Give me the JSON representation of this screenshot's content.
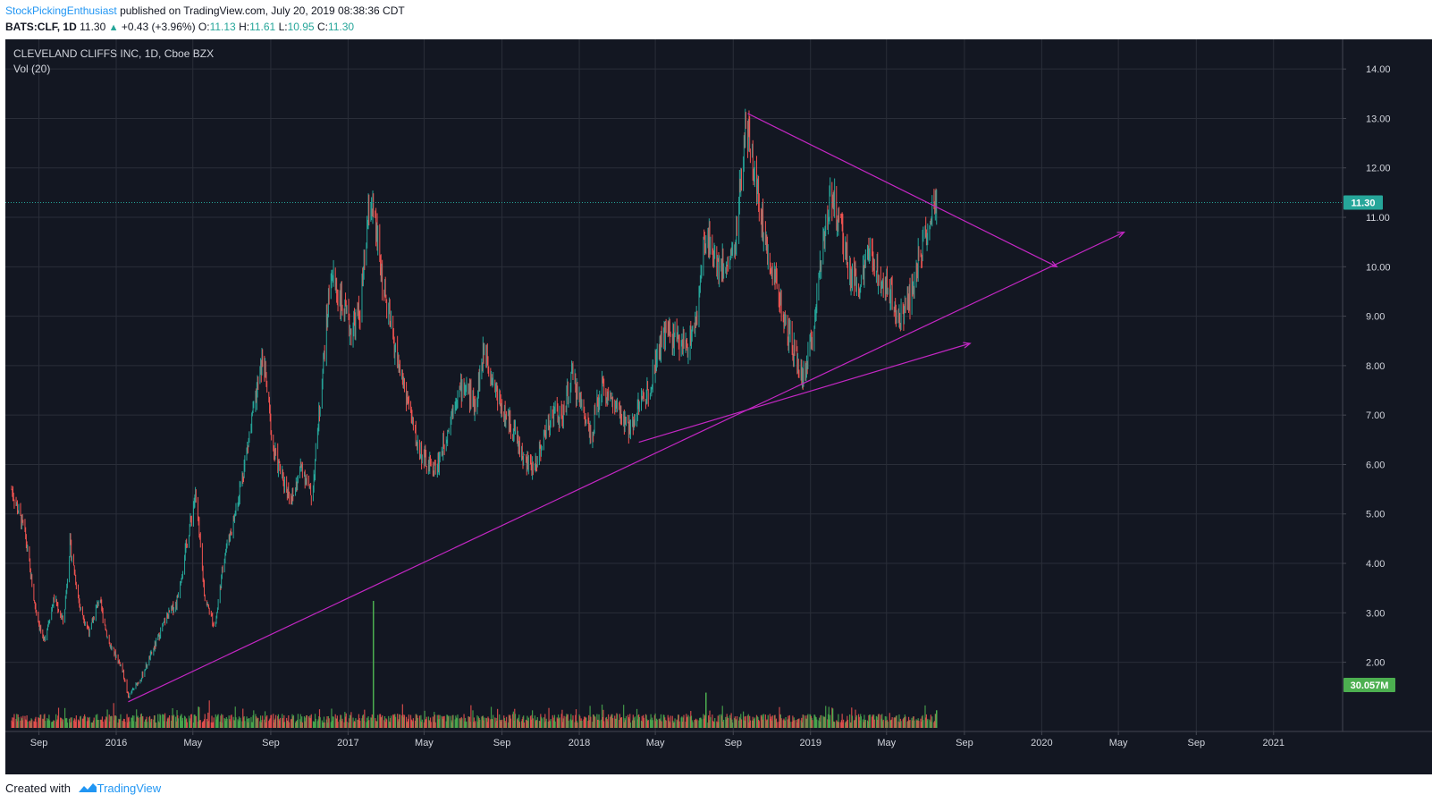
{
  "header": {
    "author": "StockPickingEnthusiast",
    "published_text": "published on TradingView.com, July 20, 2019 08:38:36 CDT",
    "symbol": "BATS:CLF, 1D",
    "last": "11.30",
    "change": "+0.43 (+3.96%)",
    "o_label": "O:",
    "o_value": "11.13",
    "h_label": "H:",
    "h_value": "11.61",
    "l_label": "L:",
    "l_value": "10.95",
    "c_label": "C:",
    "c_value": "11.30"
  },
  "legend": {
    "title": "CLEVELAND CLIFFS INC, 1D, Cboe BZX",
    "volume": "Vol (20)"
  },
  "colors": {
    "background": "#131722",
    "grid": "#2a2e39",
    "up": "#26a69a",
    "down": "#ef5350",
    "vol_up": "#4caf50",
    "vol_down": "#ef5350",
    "trendline": "#c327c3",
    "price_line": "#26a69a",
    "axis_text": "#d1d4dc"
  },
  "chart_data": {
    "type": "candlestick",
    "title": "CLEVELAND CLIFFS INC, 1D, Cboe BZX",
    "price_axis": {
      "ticks": [
        "14.00",
        "13.00",
        "12.00",
        "11.00",
        "10.00",
        "9.00",
        "8.00",
        "7.00",
        "6.00",
        "5.00",
        "4.00",
        "3.00",
        "2.00"
      ],
      "range": [
        0.6,
        14.6
      ]
    },
    "time_axis": {
      "ticks": [
        {
          "date": "2015-09-01",
          "label": "Sep"
        },
        {
          "date": "2016-01-01",
          "label": "2016"
        },
        {
          "date": "2016-05-01",
          "label": "May"
        },
        {
          "date": "2016-09-01",
          "label": "Sep"
        },
        {
          "date": "2017-01-01",
          "label": "2017"
        },
        {
          "date": "2017-05-01",
          "label": "May"
        },
        {
          "date": "2017-09-01",
          "label": "Sep"
        },
        {
          "date": "2018-01-01",
          "label": "2018"
        },
        {
          "date": "2018-05-01",
          "label": "May"
        },
        {
          "date": "2018-09-01",
          "label": "Sep"
        },
        {
          "date": "2019-01-01",
          "label": "2019"
        },
        {
          "date": "2019-05-01",
          "label": "May"
        },
        {
          "date": "2019-09-01",
          "label": "Sep"
        },
        {
          "date": "2020-01-01",
          "label": "2020"
        },
        {
          "date": "2020-05-01",
          "label": "May"
        },
        {
          "date": "2020-09-01",
          "label": "Sep"
        },
        {
          "date": "2021-01-01",
          "label": "2021"
        }
      ],
      "range": [
        "2015-07-10",
        "2021-04-20"
      ]
    },
    "grid": true,
    "last_price": {
      "value": 11.3,
      "label": "11.30"
    },
    "last_volume": {
      "value": "30.057M",
      "label": "30.057M"
    },
    "price_path": [
      [
        "2015-07-20",
        5.5
      ],
      [
        "2015-08-10",
        4.6
      ],
      [
        "2015-08-25",
        3.2
      ],
      [
        "2015-09-08",
        2.4
      ],
      [
        "2015-09-25",
        3.3
      ],
      [
        "2015-10-10",
        2.8
      ],
      [
        "2015-10-20",
        4.4
      ],
      [
        "2015-11-05",
        3.1
      ],
      [
        "2015-11-20",
        2.6
      ],
      [
        "2015-12-05",
        3.3
      ],
      [
        "2015-12-20",
        2.4
      ],
      [
        "2016-01-10",
        1.9
      ],
      [
        "2016-01-20",
        1.3
      ],
      [
        "2016-02-10",
        1.7
      ],
      [
        "2016-03-01",
        2.3
      ],
      [
        "2016-03-20",
        2.9
      ],
      [
        "2016-04-05",
        3.2
      ],
      [
        "2016-04-20",
        4.3
      ],
      [
        "2016-05-05",
        5.4
      ],
      [
        "2016-05-20",
        3.3
      ],
      [
        "2016-06-05",
        2.7
      ],
      [
        "2016-06-20",
        4.2
      ],
      [
        "2016-07-05",
        4.9
      ],
      [
        "2016-07-20",
        5.9
      ],
      [
        "2016-08-05",
        7.1
      ],
      [
        "2016-08-20",
        8.2
      ],
      [
        "2016-09-05",
        6.3
      ],
      [
        "2016-09-20",
        5.7
      ],
      [
        "2016-10-05",
        5.3
      ],
      [
        "2016-10-20",
        6.0
      ],
      [
        "2016-11-05",
        5.3
      ],
      [
        "2016-11-20",
        7.6
      ],
      [
        "2016-12-05",
        9.9
      ],
      [
        "2016-12-20",
        9.3
      ],
      [
        "2017-01-05",
        8.7
      ],
      [
        "2017-01-20",
        9.1
      ],
      [
        "2017-02-05",
        11.4
      ],
      [
        "2017-02-15",
        10.6
      ],
      [
        "2017-03-01",
        9.3
      ],
      [
        "2017-03-20",
        8.1
      ],
      [
        "2017-04-05",
        7.3
      ],
      [
        "2017-04-20",
        6.4
      ],
      [
        "2017-05-05",
        6.0
      ],
      [
        "2017-05-20",
        5.9
      ],
      [
        "2017-06-05",
        6.6
      ],
      [
        "2017-06-20",
        7.4
      ],
      [
        "2017-07-05",
        7.6
      ],
      [
        "2017-07-20",
        7.2
      ],
      [
        "2017-08-05",
        8.4
      ],
      [
        "2017-08-20",
        7.6
      ],
      [
        "2017-09-05",
        7.0
      ],
      [
        "2017-09-20",
        6.7
      ],
      [
        "2017-10-05",
        6.1
      ],
      [
        "2017-10-20",
        5.9
      ],
      [
        "2017-11-05",
        6.5
      ],
      [
        "2017-11-20",
        7.1
      ],
      [
        "2017-12-05",
        6.9
      ],
      [
        "2017-12-20",
        7.8
      ],
      [
        "2018-01-05",
        7.2
      ],
      [
        "2018-01-20",
        6.6
      ],
      [
        "2018-02-05",
        7.6
      ],
      [
        "2018-02-20",
        7.3
      ],
      [
        "2018-03-05",
        7.0
      ],
      [
        "2018-03-20",
        6.7
      ],
      [
        "2018-04-05",
        7.2
      ],
      [
        "2018-04-20",
        7.5
      ],
      [
        "2018-05-05",
        8.3
      ],
      [
        "2018-05-20",
        8.7
      ],
      [
        "2018-06-05",
        8.5
      ],
      [
        "2018-06-20",
        8.4
      ],
      [
        "2018-07-05",
        8.9
      ],
      [
        "2018-07-20",
        10.8
      ],
      [
        "2018-08-05",
        10.1
      ],
      [
        "2018-08-20",
        10.0
      ],
      [
        "2018-09-05",
        10.5
      ],
      [
        "2018-09-20",
        12.8
      ],
      [
        "2018-10-05",
        12.0
      ],
      [
        "2018-10-20",
        10.6
      ],
      [
        "2018-11-05",
        9.9
      ],
      [
        "2018-11-20",
        8.9
      ],
      [
        "2018-12-05",
        8.3
      ],
      [
        "2018-12-20",
        7.7
      ],
      [
        "2019-01-05",
        8.6
      ],
      [
        "2019-01-20",
        10.6
      ],
      [
        "2019-02-05",
        11.5
      ],
      [
        "2019-02-20",
        10.6
      ],
      [
        "2019-03-05",
        9.9
      ],
      [
        "2019-03-20",
        9.6
      ],
      [
        "2019-04-05",
        10.3
      ],
      [
        "2019-04-20",
        9.8
      ],
      [
        "2019-05-05",
        9.6
      ],
      [
        "2019-05-20",
        9.0
      ],
      [
        "2019-06-05",
        9.3
      ],
      [
        "2019-06-20",
        10.1
      ],
      [
        "2019-07-05",
        10.8
      ],
      [
        "2019-07-19",
        11.3
      ]
    ],
    "volume_spikes": [
      {
        "date": "2017-02-10",
        "value": 3.6
      },
      {
        "date": "2018-07-20",
        "value": 1.0
      },
      {
        "date": "2016-05-10",
        "value": 0.6
      },
      {
        "date": "2019-02-05",
        "value": 0.55
      },
      {
        "date": "2019-07-19",
        "value": 0.5
      }
    ],
    "trendlines": [
      {
        "from": [
          "2016-01-20",
          1.2
        ],
        "to": [
          "2020-05-10",
          10.7
        ],
        "arrow": true
      },
      {
        "from": [
          "2018-09-24",
          13.1
        ],
        "to": [
          "2020-01-25",
          10.0
        ],
        "arrow": true
      },
      {
        "from": [
          "2018-04-05",
          6.45
        ],
        "to": [
          "2019-09-10",
          8.45
        ],
        "arrow": true
      }
    ]
  },
  "footer": {
    "created_with": "Created with",
    "brand": "TradingView"
  }
}
